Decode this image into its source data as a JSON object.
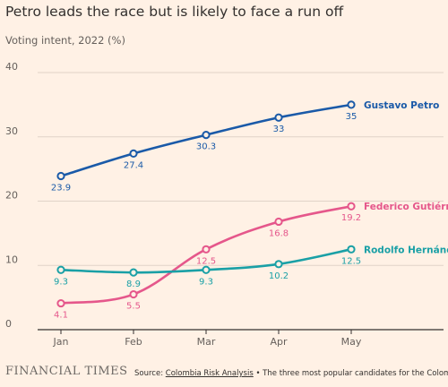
{
  "header": {
    "title": "Petro leads the race but is likely to face a run off",
    "subtitle": "Voting intent, 2022 (%)"
  },
  "footer": {
    "brand": "FINANCIAL TIMES",
    "source_prefix": "Source: ",
    "source_link": "Colombia Risk Analysis",
    "source_note": " • The three most popular candidates for the Colombian"
  },
  "chart_data": {
    "type": "line",
    "title": "Petro leads the race but is likely to face a run off",
    "subtitle": "Voting intent, 2022 (%)",
    "x": [
      "Jan",
      "Feb",
      "Mar",
      "Apr",
      "May"
    ],
    "ylim": [
      0,
      40
    ],
    "yticks": [
      "0",
      "10",
      "20",
      "30",
      "40"
    ],
    "grid": true,
    "legend": "direct labels at line ends",
    "series": [
      {
        "name": "Gustavo Petro",
        "color": "#1a5aa8",
        "values": [
          23.9,
          27.4,
          30.3,
          33,
          35
        ],
        "labels": [
          "23.9",
          "27.4",
          "30.3",
          "33",
          "35"
        ]
      },
      {
        "name": "Federico Gutiérrez",
        "color": "#e5578b",
        "values": [
          4.1,
          5.5,
          12.5,
          16.8,
          19.2
        ],
        "labels": [
          "4.1",
          "5.5",
          "12.5",
          "16.8",
          "19.2"
        ]
      },
      {
        "name": "Rodolfo Hernández",
        "color": "#1aa0a6",
        "values": [
          9.3,
          8.9,
          9.3,
          10.2,
          12.5
        ],
        "labels": [
          "9.3",
          "8.9",
          "9.3",
          "10.2",
          "12.5"
        ]
      }
    ]
  }
}
